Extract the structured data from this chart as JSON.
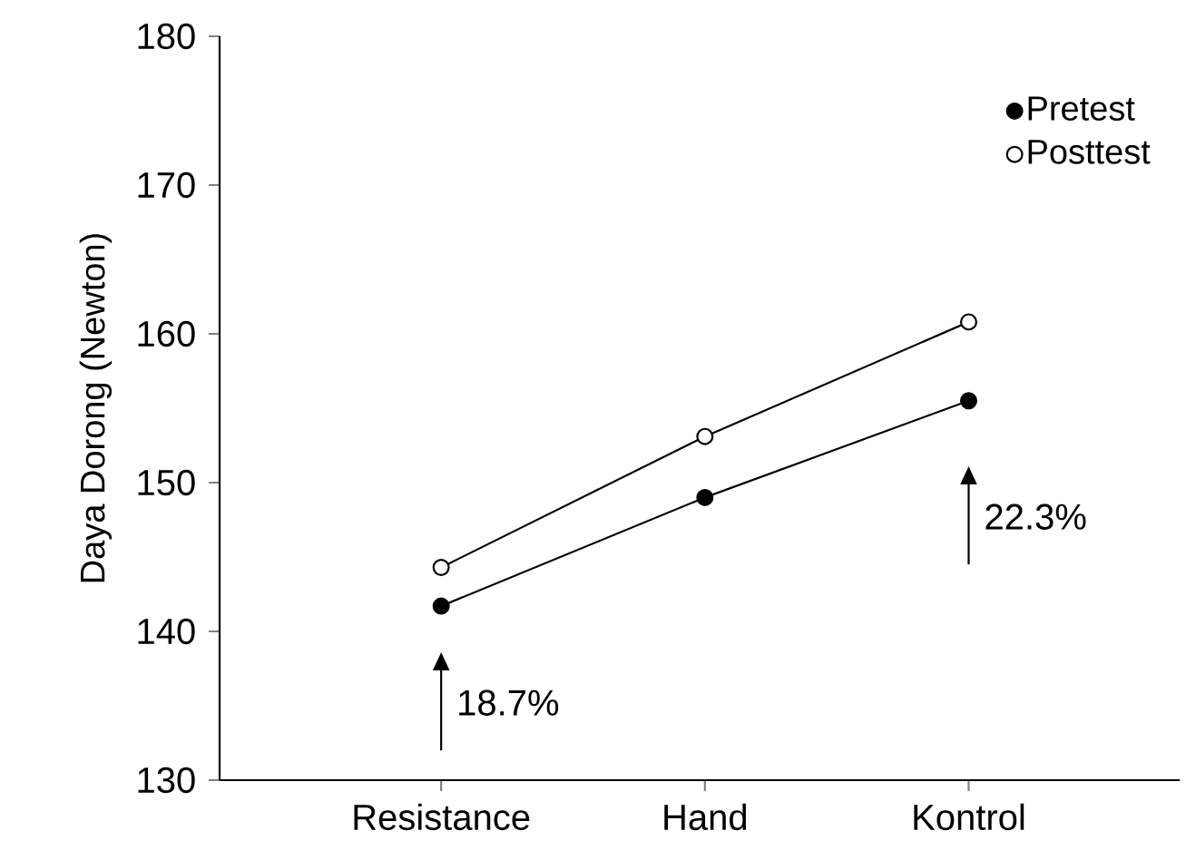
{
  "chart_data": {
    "type": "line",
    "ylabel": "Daya Dorong (Newton)",
    "categories": [
      "Resistance",
      "Hand",
      "Kontrol"
    ],
    "series": [
      {
        "name": "Pretest",
        "color": "#000000",
        "values": [
          141.7,
          149.0,
          155.5
        ]
      },
      {
        "name": "Posttest",
        "color": "#000000",
        "values": [
          144.3,
          153.1,
          160.8
        ]
      }
    ],
    "ylim": [
      130,
      180
    ],
    "yticks": [
      130,
      140,
      150,
      160,
      170,
      180
    ],
    "marker": "circle",
    "line_style": "solid",
    "legend": "top right",
    "grid": false,
    "annotations": [
      "18.7%",
      "22.3%"
    ]
  }
}
